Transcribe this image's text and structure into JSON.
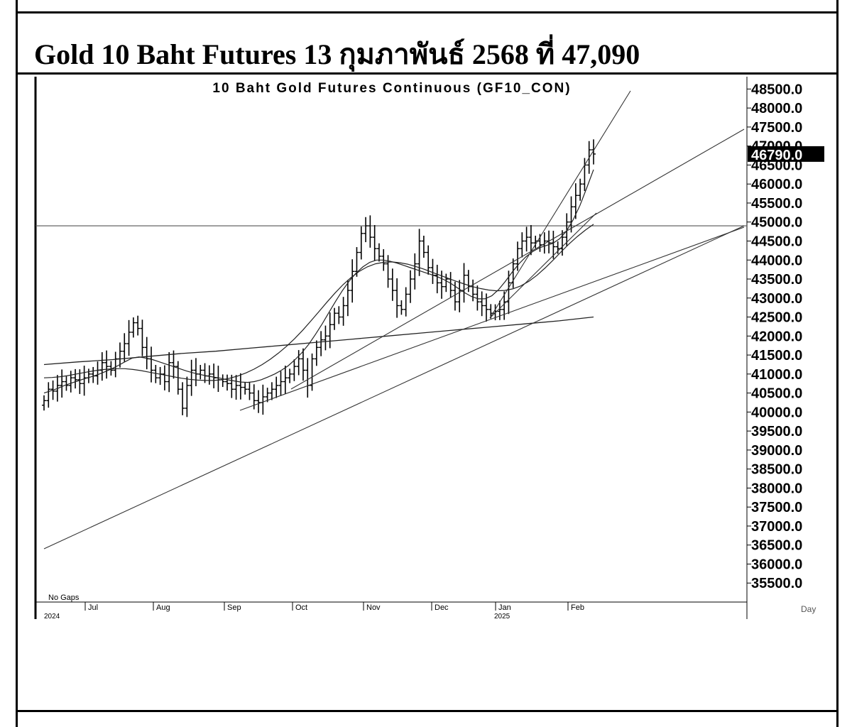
{
  "page": {
    "title": "Gold 10 Baht Futures 13 กุมภาพันธ์ 2568 ที่ 47,090"
  },
  "chart_data": {
    "type": "candlestick",
    "title": "10 Baht Gold Futures Continuous (GF10_CON)",
    "note": "No Gaps",
    "last_price_label": "46790.0",
    "y_ticks": [
      "48500.0",
      "48000.0",
      "47500.0",
      "47000.0",
      "46500.0",
      "46000.0",
      "45500.0",
      "45000.0",
      "44500.0",
      "44000.0",
      "43500.0",
      "43000.0",
      "42500.0",
      "42000.0",
      "41500.0",
      "41000.0",
      "40500.0",
      "40000.0",
      "39500.0",
      "39000.0",
      "38500.0",
      "38000.0",
      "37500.0",
      "37000.0",
      "36500.0",
      "36000.0",
      "35500.0"
    ],
    "x_ticks": [
      "Jul",
      "Aug",
      "Sep",
      "Oct",
      "Nov",
      "Dec",
      "Jan",
      "Feb"
    ],
    "x_year_labels": [
      "2024",
      "2025"
    ],
    "x_axis_label": "Day",
    "ylim": [
      35000,
      48750
    ],
    "horizontal_level": 44900,
    "closes": [
      40300,
      40600,
      40550,
      40700,
      40800,
      40700,
      40900,
      40850,
      40750,
      40900,
      41000,
      40950,
      41100,
      41300,
      41200,
      41100,
      41400,
      41600,
      41800,
      42100,
      42350,
      42200,
      41700,
      41400,
      41100,
      40900,
      41000,
      40800,
      41300,
      41200,
      40600,
      40100,
      40700,
      41100,
      41000,
      41100,
      40950,
      41000,
      40900,
      40850,
      40800,
      40750,
      40600,
      40700,
      40650,
      40600,
      40500,
      40300,
      40250,
      40400,
      40500,
      40600,
      40700,
      40800,
      40900,
      41000,
      41200,
      41400,
      41100,
      40700,
      41400,
      41700,
      41900,
      42000,
      42300,
      42600,
      42500,
      42800,
      43200,
      43700,
      44200,
      44700,
      44900,
      44600,
      44300,
      44100,
      43900,
      43500,
      43200,
      42800,
      42700,
      43100,
      43500,
      43900,
      44500,
      44200,
      43800,
      43600,
      43400,
      43300,
      43500,
      43200,
      42900,
      43200,
      43600,
      43300,
      43100,
      42900,
      42800,
      42700,
      42600,
      42650,
      42700,
      42900,
      43400,
      43900,
      44300,
      44500,
      44600,
      44450,
      44500,
      44400,
      44500,
      44450,
      44350,
      44300,
      44600,
      45000,
      45400,
      45700,
      46000,
      46500,
      46900,
      46790
    ],
    "moving_averages": {
      "ma_fast": [
        40500,
        40560,
        40620,
        40700,
        40760,
        40820,
        40880,
        40930,
        40990,
        41060,
        41140,
        41230,
        41330,
        41420,
        41450,
        41420,
        41380,
        41320,
        41260,
        41200,
        41140,
        41080,
        41030,
        40990,
        40950,
        40920,
        40890,
        40850,
        40820,
        40790,
        40780,
        40800,
        40850,
        40920,
        41000,
        41100,
        41220,
        41380,
        41560,
        41780,
        42040,
        42320,
        42620,
        42920,
        43200,
        43450,
        43660,
        43820,
        43940,
        44000,
        44000,
        43970,
        43920,
        43860,
        43800,
        43740,
        43680,
        43620,
        43560,
        43480,
        43380,
        43260,
        43140,
        43040,
        42980,
        42980,
        43060,
        43220,
        43440,
        43680,
        43900,
        44080,
        44220,
        44320,
        44380,
        44440,
        44560,
        44760,
        45060,
        45440,
        45900,
        46380
      ],
      "ma_slow": [
        40900,
        40910,
        40930,
        40960,
        41000,
        41040,
        41080,
        41110,
        41130,
        41140,
        41140,
        41120,
        41090,
        41050,
        41010,
        40970,
        40930,
        40890,
        40860,
        40840,
        40830,
        40830,
        40850,
        40890,
        40950,
        41030,
        41130,
        41250,
        41390,
        41550,
        41730,
        41930,
        42150,
        42390,
        42640,
        42890,
        43130,
        43350,
        43540,
        43700,
        43820,
        43900,
        43940,
        43950,
        43930,
        43890,
        43830,
        43760,
        43680,
        43600,
        43520,
        43440,
        43370,
        43300,
        43250,
        43210,
        43190,
        43200,
        43240,
        43320,
        43440,
        43600,
        43790,
        44000,
        44220,
        44430,
        44620,
        44790,
        44940
      ]
    },
    "long_term_ma": [
      41250,
      41320,
      41380,
      41460,
      41540,
      41600,
      41680,
      41760,
      41840,
      41920,
      42000,
      42080,
      42160,
      42240,
      42320,
      42400,
      42500
    ]
  }
}
